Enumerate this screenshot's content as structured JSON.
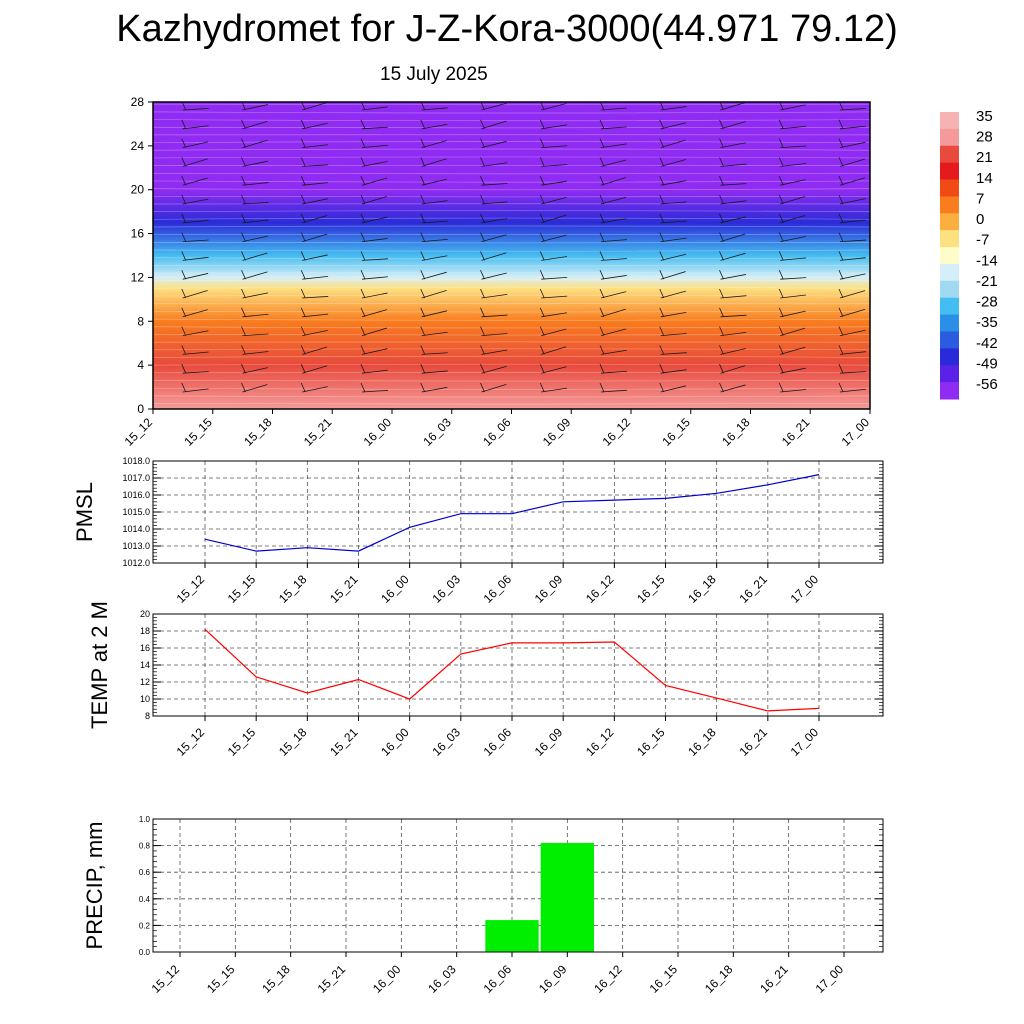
{
  "header": {
    "title": "Kazhydromet for J-Z-Kora-3000(44.971 79.12)",
    "subtitle": "15 July 2025"
  },
  "time_labels": [
    "15_12",
    "15_15",
    "15_18",
    "15_21",
    "16_00",
    "16_03",
    "16_06",
    "16_09",
    "16_12",
    "16_15",
    "16_18",
    "16_21",
    "17_00"
  ],
  "colorbar": {
    "labels": [
      "35",
      "28",
      "21",
      "14",
      "7",
      "0",
      "-7",
      "-14",
      "-21",
      "-28",
      "-35",
      "-42",
      "-49",
      "-56"
    ],
    "colors": [
      "#f7b3b3",
      "#f59a9a",
      "#e84a3c",
      "#e41a1c",
      "#f24a14",
      "#f97c1e",
      "#fcae3e",
      "#fde080",
      "#fefcc8",
      "#d6eef7",
      "#9fd9f2",
      "#44bdf0",
      "#2a8fe6",
      "#2b5ce0",
      "#2a2bd8",
      "#5a22e6",
      "#8f2bf2"
    ]
  },
  "chart_data": [
    {
      "type": "heatmap",
      "title": "",
      "ylim": [
        0,
        28
      ],
      "y_ticks": [
        "0",
        "4",
        "8",
        "12",
        "16",
        "20",
        "24",
        "28"
      ],
      "x": [
        "15_12",
        "15_15",
        "15_18",
        "15_21",
        "16_00",
        "16_03",
        "16_06",
        "16_09",
        "16_12",
        "16_15",
        "16_18",
        "16_21",
        "17_00"
      ],
      "value_range": [
        -56,
        35
      ],
      "profile": [
        {
          "y": 0,
          "value": 25
        },
        {
          "y": 4,
          "value": 21
        },
        {
          "y": 8,
          "value": 7
        },
        {
          "y": 11,
          "value": -7
        },
        {
          "y": 12,
          "value": -14
        },
        {
          "y": 14,
          "value": -28
        },
        {
          "y": 17,
          "value": -42
        },
        {
          "y": 20,
          "value": -56
        },
        {
          "y": 24,
          "value": -56
        },
        {
          "y": 28,
          "value": -56
        }
      ]
    },
    {
      "type": "line",
      "ylabel": "PMSL",
      "ylim": [
        1012,
        1018
      ],
      "y_ticks": [
        "1012.0",
        "1013.0",
        "1014.0",
        "1015.0",
        "1016.0",
        "1017.0",
        "1018.0"
      ],
      "series": [
        {
          "values": [
            1013.4,
            1012.7,
            1012.9,
            1012.7,
            1014.1,
            1014.9,
            1014.9,
            1015.6,
            1015.7,
            1015.8,
            1016.1,
            1016.6,
            1017.2
          ]
        }
      ],
      "color": "#0000cc"
    },
    {
      "type": "line",
      "ylabel": "TEMP at 2 M",
      "ylim": [
        8,
        20
      ],
      "y_ticks": [
        "8",
        "10",
        "12",
        "14",
        "16",
        "18",
        "20"
      ],
      "series": [
        {
          "values": [
            18.2,
            12.6,
            10.7,
            12.3,
            10.0,
            15.3,
            16.6,
            16.6,
            16.7,
            11.6,
            10.1,
            8.6,
            8.9
          ]
        }
      ],
      "color": "#ff0000"
    },
    {
      "type": "bar",
      "ylabel": "PRECIP, mm",
      "ylim": [
        0,
        1
      ],
      "y_ticks": [
        "0.0",
        "0.2",
        "0.4",
        "0.6",
        "0.8",
        "1.0"
      ],
      "categories": [
        "15_12",
        "15_15",
        "15_18",
        "15_21",
        "16_00",
        "16_03",
        "16_06",
        "16_09",
        "16_12",
        "16_15",
        "16_18",
        "16_21",
        "17_00"
      ],
      "values": [
        0,
        0,
        0,
        0,
        0,
        0,
        0.24,
        0.82,
        0,
        0,
        0,
        0,
        0
      ],
      "color": "#00ee00"
    }
  ]
}
